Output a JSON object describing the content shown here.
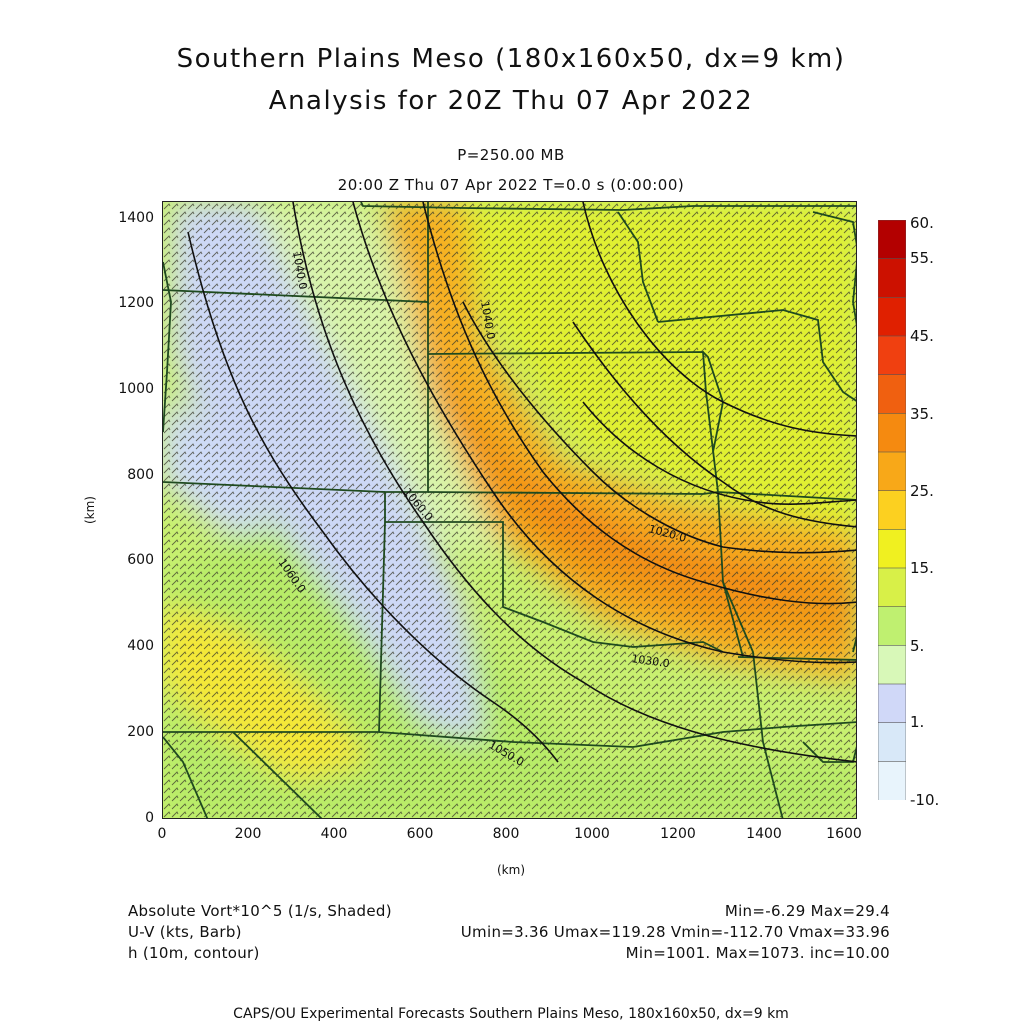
{
  "header": {
    "title_line1": "Southern Plains Meso (180x160x50, dx=9 km)",
    "title_line2": "Analysis for 20Z Thu 07 Apr 2022",
    "level": "P=250.00 MB",
    "time": "20:00 Z Thu 07 Apr 2022   T=0.0 s (0:00:00)"
  },
  "axes": {
    "xlabel": "(km)",
    "ylabel": "(km)",
    "xticks": [
      "0",
      "200",
      "400",
      "600",
      "800",
      "1000",
      "1200",
      "1400",
      "1600"
    ],
    "yticks": [
      "0",
      "200",
      "400",
      "600",
      "800",
      "1000",
      "1200",
      "1400"
    ]
  },
  "contours": {
    "labels": [
      {
        "text": "1040.0",
        "id": "a"
      },
      {
        "text": "1060.0",
        "id": "b"
      },
      {
        "text": "1060.0",
        "id": "c"
      },
      {
        "text": "1050.0",
        "id": "d"
      },
      {
        "text": "1020.0",
        "id": "e"
      },
      {
        "text": "1040.0",
        "id": "f"
      },
      {
        "text": "1030.0",
        "id": "g"
      }
    ]
  },
  "colorbar": {
    "labels": [
      "60.",
      "55.",
      "45.",
      "35.",
      "25.",
      "15.",
      "5.",
      "1.",
      "-10."
    ],
    "colors": [
      "#b30000",
      "#cc1100",
      "#e02000",
      "#f04010",
      "#f06010",
      "#f58a10",
      "#f8a818",
      "#fcd020",
      "#f0f020",
      "#d8f048",
      "#bff070",
      "#d8f8b8",
      "#d0d8f8",
      "#d8e8f8",
      "#e8f4fc"
    ]
  },
  "info": {
    "row1_left": "Absolute Vort*10^5 (1/s, Shaded)",
    "row1_right": "Min=-6.29 Max=29.4",
    "row2_left": "U-V (kts, Barb)",
    "row2_right": "Umin=3.36 Umax=119.28 Vmin=-112.70 Vmax=33.96",
    "row3_left": "h (10m, contour)",
    "row3_right": "Min=1001. Max=1073. inc=10.00"
  },
  "footer": "CAPS/OU Experimental Forecasts  Southern Plains Meso, 180x160x50, dx=9 km"
}
